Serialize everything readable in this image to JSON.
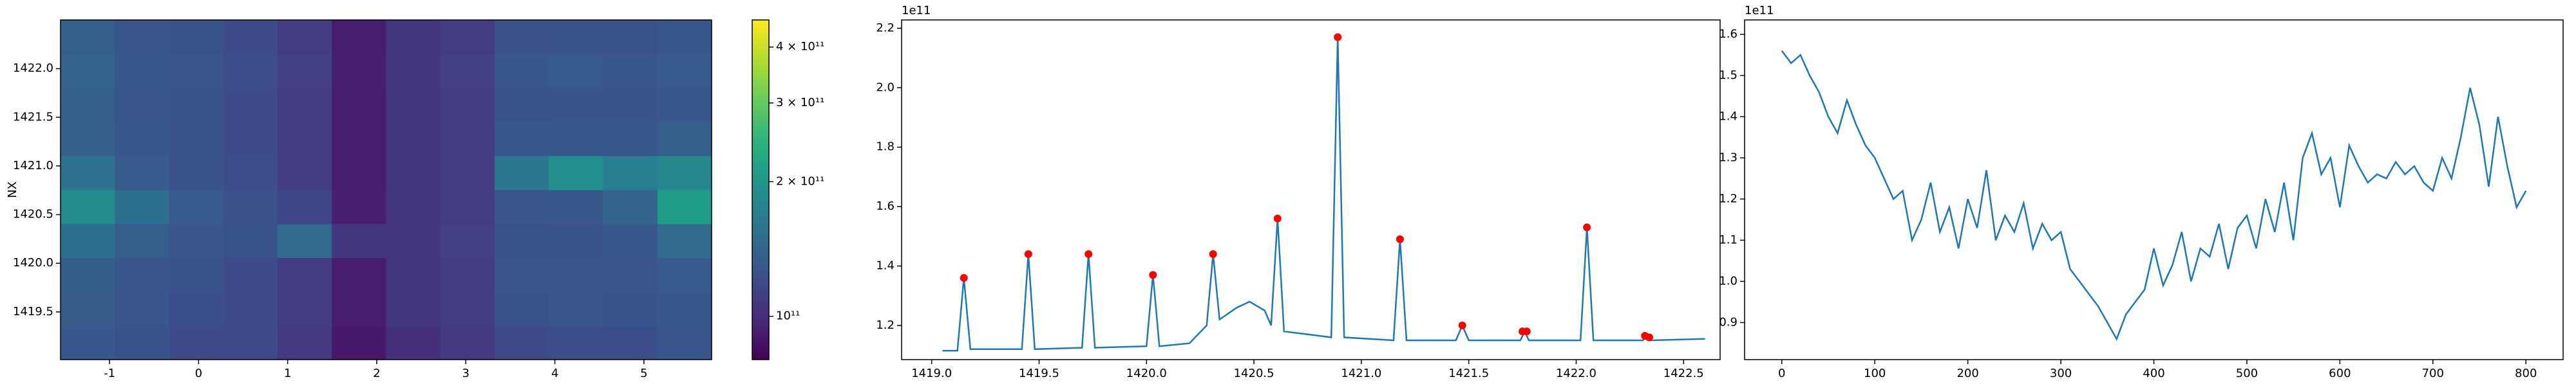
{
  "chart_data": [
    {
      "type": "heatmap",
      "ylabel": "NX",
      "xlim": [
        -1.55,
        5.76
      ],
      "ylim": [
        1419.01,
        1422.5
      ],
      "xticks": [
        -1,
        0,
        1,
        2,
        3,
        4,
        5
      ],
      "yticks": [
        1419.5,
        {
          "value": 1420.0,
          "label": "1420.0"
        },
        1420.5,
        {
          "value": 1421.0,
          "label": "1421.0"
        },
        1421.5,
        {
          "value": 1422.0,
          "label": "1422.0"
        }
      ],
      "z": [
        [
          130000000000.0,
          125000000000.0,
          120000000000.0,
          118000000000.0,
          108000000000.0,
          90000000000.0,
          102000000000.0,
          108000000000.0,
          120000000000.0,
          122000000000.0,
          122000000000.0,
          128000000000.0
        ],
        [
          133000000000.0,
          127000000000.0,
          123000000000.0,
          120000000000.0,
          110000000000.0,
          92000000000.0,
          105000000000.0,
          110000000000.0,
          125000000000.0,
          128000000000.0,
          126000000000.0,
          130000000000.0
        ],
        [
          134000000000.0,
          128000000000.0,
          125000000000.0,
          120000000000.0,
          110000000000.0,
          92000000000.0,
          105000000000.0,
          110000000000.0,
          128000000000.0,
          127000000000.0,
          127000000000.0,
          132000000000.0
        ],
        [
          150000000000.0,
          135000000000.0,
          128000000000.0,
          125000000000.0,
          145000000000.0,
          105000000000.0,
          106000000000.0,
          112000000000.0,
          125000000000.0,
          126000000000.0,
          130000000000.0,
          145000000000.0
        ],
        [
          185000000000.0,
          150000000000.0,
          132000000000.0,
          124000000000.0,
          115000000000.0,
          93000000000.0,
          105000000000.0,
          110000000000.0,
          128000000000.0,
          130000000000.0,
          140000000000.0,
          210000000000.0
        ],
        [
          155000000000.0,
          132000000000.0,
          126000000000.0,
          122000000000.0,
          110000000000.0,
          92000000000.0,
          105000000000.0,
          110000000000.0,
          160000000000.0,
          190000000000.0,
          170000000000.0,
          180000000000.0
        ],
        [
          136000000000.0,
          130000000000.0,
          125000000000.0,
          120000000000.0,
          110000000000.0,
          92000000000.0,
          105000000000.0,
          110000000000.0,
          130000000000.0,
          130000000000.0,
          130000000000.0,
          135000000000.0
        ],
        [
          135000000000.0,
          128000000000.0,
          125000000000.0,
          120000000000.0,
          110000000000.0,
          92000000000.0,
          105000000000.0,
          110000000000.0,
          125000000000.0,
          126000000000.0,
          126000000000.0,
          130000000000.0
        ],
        [
          138000000000.0,
          130000000000.0,
          127000000000.0,
          122000000000.0,
          112000000000.0,
          93000000000.0,
          106000000000.0,
          112000000000.0,
          130000000000.0,
          132000000000.0,
          130000000000.0,
          132000000000.0
        ],
        [
          135000000000.0,
          128000000000.0,
          125000000000.0,
          120000000000.0,
          110000000000.0,
          92000000000.0,
          105000000000.0,
          110000000000.0,
          124000000000.0,
          126000000000.0,
          125000000000.0,
          130000000000.0
        ]
      ],
      "colormap": "viridis",
      "colorbar": {
        "clim": [
          80000000000.0,
          460000000000.0
        ],
        "log": true,
        "ticks": [
          {
            "value": 100000000000.0,
            "label": "10¹¹"
          },
          {
            "value": 200000000000.0,
            "label": "2 × 10¹¹"
          },
          {
            "value": 300000000000.0,
            "label": "3 × 10¹¹"
          },
          {
            "value": 400000000000.0,
            "label": "4 × 10¹¹"
          }
        ]
      }
    },
    {
      "type": "line",
      "offset_label": "1e11",
      "xlim": [
        1418.86,
        1422.67
      ],
      "ylim": [
        1.085,
        2.228
      ],
      "xticks": [
        {
          "value": 1419.0,
          "label": "1419.0"
        },
        1419.5,
        {
          "value": 1420.0,
          "label": "1420.0"
        },
        1420.5,
        {
          "value": 1421.0,
          "label": "1421.0"
        },
        1421.5,
        {
          "value": 1422.0,
          "label": "1422.0"
        },
        1422.5
      ],
      "yticks": [
        1.2,
        1.4,
        1.6,
        1.8,
        {
          "value": 2.0,
          "label": "2.0"
        },
        2.2
      ],
      "series": [
        {
          "color": "#1f77b4",
          "mode": "line",
          "x": [
            1419.05,
            1419.12,
            1419.15,
            1419.18,
            1419.42,
            1419.45,
            1419.48,
            1419.7,
            1419.73,
            1419.76,
            1420.0,
            1420.03,
            1420.06,
            1420.2,
            1420.28,
            1420.31,
            1420.34,
            1420.42,
            1420.48,
            1420.55,
            1420.58,
            1420.61,
            1420.64,
            1420.75,
            1420.86,
            1420.89,
            1420.92,
            1421.15,
            1421.18,
            1421.21,
            1421.44,
            1421.47,
            1421.5,
            1421.74,
            1421.76,
            1421.78,
            1422.02,
            1422.05,
            1422.08,
            1422.31,
            1422.33,
            1422.35,
            1422.6
          ],
          "values": [
            1.115,
            1.115,
            1.36,
            1.12,
            1.12,
            1.44,
            1.12,
            1.125,
            1.44,
            1.125,
            1.13,
            1.37,
            1.13,
            1.14,
            1.2,
            1.44,
            1.22,
            1.26,
            1.28,
            1.25,
            1.2,
            1.56,
            1.18,
            1.17,
            1.16,
            2.17,
            1.16,
            1.15,
            1.49,
            1.15,
            1.15,
            1.2,
            1.15,
            1.15,
            1.18,
            1.15,
            1.15,
            1.53,
            1.15,
            1.15,
            1.165,
            1.15,
            1.155
          ]
        },
        {
          "color": "red",
          "mode": "markers",
          "x": [
            1419.15,
            1419.45,
            1419.73,
            1420.03,
            1420.31,
            1420.61,
            1420.89,
            1421.18,
            1421.47,
            1421.75,
            1421.77,
            1422.05,
            1422.32,
            1422.34
          ],
          "values": [
            1.36,
            1.44,
            1.44,
            1.37,
            1.44,
            1.56,
            2.17,
            1.49,
            1.2,
            1.18,
            1.18,
            1.53,
            1.165,
            1.16
          ]
        }
      ]
    },
    {
      "type": "line",
      "offset_label": "1e11",
      "xlim": [
        -40,
        840
      ],
      "ylim": [
        0.81,
        1.635
      ],
      "xticks": [
        0,
        100,
        200,
        300,
        400,
        500,
        600,
        700,
        800
      ],
      "yticks": [
        0.9,
        {
          "value": 1.0,
          "label": "1.0"
        },
        1.1,
        1.2,
        1.3,
        1.4,
        1.5,
        1.6
      ],
      "series": [
        {
          "color": "#1f77b4",
          "mode": "line",
          "x": [
            0,
            10,
            20,
            30,
            40,
            50,
            60,
            70,
            80,
            90,
            100,
            110,
            120,
            130,
            140,
            150,
            160,
            170,
            180,
            190,
            200,
            210,
            220,
            230,
            240,
            250,
            260,
            270,
            280,
            290,
            300,
            310,
            320,
            330,
            340,
            350,
            360,
            370,
            380,
            390,
            400,
            410,
            420,
            430,
            440,
            450,
            460,
            470,
            480,
            490,
            500,
            510,
            520,
            530,
            540,
            550,
            560,
            570,
            580,
            590,
            600,
            610,
            620,
            630,
            640,
            650,
            660,
            670,
            680,
            690,
            700,
            710,
            720,
            730,
            740,
            750,
            760,
            770,
            780,
            790,
            800
          ],
          "values": [
            1.56,
            1.53,
            1.55,
            1.5,
            1.46,
            1.4,
            1.36,
            1.44,
            1.38,
            1.33,
            1.3,
            1.25,
            1.2,
            1.22,
            1.1,
            1.15,
            1.24,
            1.12,
            1.18,
            1.08,
            1.2,
            1.13,
            1.27,
            1.1,
            1.16,
            1.12,
            1.19,
            1.08,
            1.14,
            1.1,
            1.12,
            1.03,
            1.0,
            0.97,
            0.94,
            0.9,
            0.86,
            0.92,
            0.95,
            0.98,
            1.08,
            0.99,
            1.04,
            1.12,
            1.0,
            1.08,
            1.06,
            1.14,
            1.03,
            1.13,
            1.16,
            1.08,
            1.2,
            1.12,
            1.24,
            1.1,
            1.3,
            1.36,
            1.26,
            1.3,
            1.18,
            1.33,
            1.28,
            1.24,
            1.26,
            1.25,
            1.29,
            1.26,
            1.28,
            1.24,
            1.22,
            1.3,
            1.25,
            1.35,
            1.47,
            1.38,
            1.23,
            1.4,
            1.28,
            1.18,
            1.22
          ]
        }
      ]
    }
  ]
}
